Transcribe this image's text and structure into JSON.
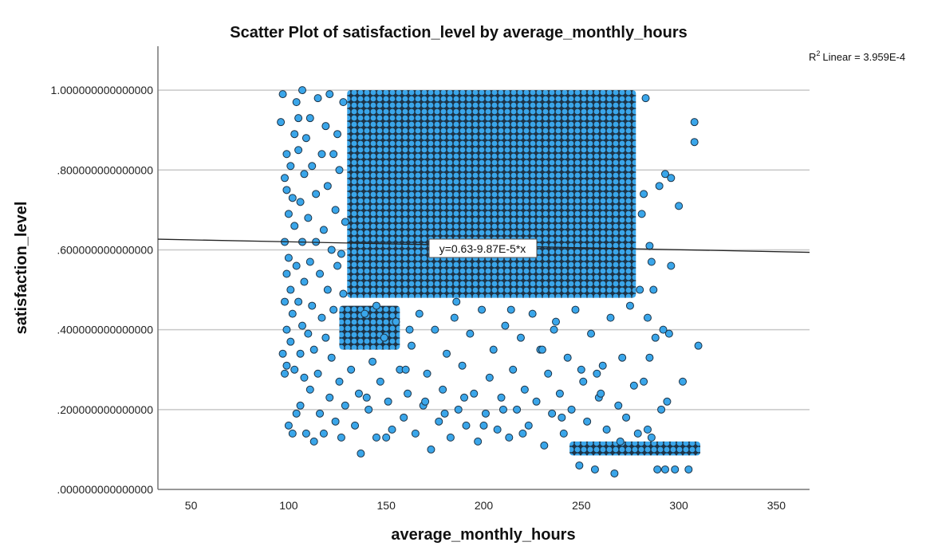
{
  "chart_data": {
    "type": "scatter",
    "title": "Scatter Plot of satisfaction_level by average_monthly_hours",
    "xlabel": "average_monthly_hours",
    "ylabel": "satisfaction_level",
    "xlim": [
      33,
      367
    ],
    "ylim": [
      0,
      1.11
    ],
    "x_ticks": [
      50,
      100,
      150,
      200,
      250,
      300,
      350
    ],
    "x_tick_labels": [
      "50",
      "100",
      "150",
      "200",
      "250",
      "300",
      "350"
    ],
    "y_ticks": [
      0,
      0.2,
      0.4,
      0.6,
      0.8,
      1.0
    ],
    "y_tick_labels": [
      ".000000000000000",
      ".200000000000000",
      ".400000000000000",
      ".600000000000000",
      ".800000000000000",
      "1.000000000000000"
    ],
    "grid": "horizontal",
    "colors": {
      "marker_fill": "#3aa6ea",
      "marker_edge": "#1d3346",
      "fit_line": "#222222"
    },
    "fit": {
      "type": "linear",
      "intercept": 0.63,
      "slope": -9.87e-05,
      "equation_label": "y=0.63-9.87E-5*x",
      "r2_label": "Linear = 3.959E-4",
      "r2_prefix": "R",
      "r2_sup": "2"
    },
    "dense_regions": [
      {
        "x": [
          130,
          278
        ],
        "y": [
          0.48,
          1.0
        ]
      },
      {
        "x": [
          126,
          157
        ],
        "y": [
          0.35,
          0.46
        ]
      },
      {
        "x": [
          244,
          311
        ],
        "y": [
          0.085,
          0.12
        ]
      }
    ],
    "points": [
      [
        96,
        0.92
      ],
      [
        97,
        0.99
      ],
      [
        97,
        0.34
      ],
      [
        98,
        0.78
      ],
      [
        98,
        0.62
      ],
      [
        98,
        0.47
      ],
      [
        98,
        0.29
      ],
      [
        99,
        0.84
      ],
      [
        99,
        0.75
      ],
      [
        99,
        0.54
      ],
      [
        99,
        0.4
      ],
      [
        99,
        0.31
      ],
      [
        100,
        0.16
      ],
      [
        100,
        0.69
      ],
      [
        100,
        0.58
      ],
      [
        101,
        0.81
      ],
      [
        101,
        0.5
      ],
      [
        101,
        0.37
      ],
      [
        102,
        0.14
      ],
      [
        102,
        0.73
      ],
      [
        102,
        0.44
      ],
      [
        103,
        0.89
      ],
      [
        103,
        0.66
      ],
      [
        103,
        0.3
      ],
      [
        104,
        0.97
      ],
      [
        104,
        0.56
      ],
      [
        104,
        0.19
      ],
      [
        105,
        0.93
      ],
      [
        105,
        0.85
      ],
      [
        105,
        0.47
      ],
      [
        106,
        0.72
      ],
      [
        106,
        0.34
      ],
      [
        106,
        0.21
      ],
      [
        107,
        1.0
      ],
      [
        107,
        0.62
      ],
      [
        107,
        0.41
      ],
      [
        108,
        0.79
      ],
      [
        108,
        0.52
      ],
      [
        108,
        0.28
      ],
      [
        109,
        0.88
      ],
      [
        109,
        0.14
      ],
      [
        110,
        0.68
      ],
      [
        110,
        0.39
      ],
      [
        111,
        0.93
      ],
      [
        111,
        0.57
      ],
      [
        111,
        0.25
      ],
      [
        112,
        0.81
      ],
      [
        112,
        0.46
      ],
      [
        113,
        0.12
      ],
      [
        113,
        0.35
      ],
      [
        114,
        0.74
      ],
      [
        114,
        0.62
      ],
      [
        115,
        0.98
      ],
      [
        115,
        0.29
      ],
      [
        116,
        0.54
      ],
      [
        116,
        0.19
      ],
      [
        117,
        0.84
      ],
      [
        117,
        0.43
      ],
      [
        118,
        0.65
      ],
      [
        118,
        0.14
      ],
      [
        119,
        0.91
      ],
      [
        119,
        0.38
      ],
      [
        120,
        0.76
      ],
      [
        120,
        0.5
      ],
      [
        121,
        0.99
      ],
      [
        121,
        0.23
      ],
      [
        122,
        0.6
      ],
      [
        122,
        0.33
      ],
      [
        123,
        0.84
      ],
      [
        123,
        0.45
      ],
      [
        124,
        0.7
      ],
      [
        124,
        0.17
      ],
      [
        125,
        0.89
      ],
      [
        125,
        0.56
      ],
      [
        126,
        0.8
      ],
      [
        126,
        0.27
      ],
      [
        127,
        0.59
      ],
      [
        127,
        0.13
      ],
      [
        128,
        0.97
      ],
      [
        128,
        0.49
      ],
      [
        129,
        0.67
      ],
      [
        129,
        0.21
      ],
      [
        132,
        0.3
      ],
      [
        134,
        0.16
      ],
      [
        136,
        0.24
      ],
      [
        137,
        0.09
      ],
      [
        139,
        0.44
      ],
      [
        141,
        0.2
      ],
      [
        143,
        0.32
      ],
      [
        145,
        0.13
      ],
      [
        147,
        0.27
      ],
      [
        149,
        0.38
      ],
      [
        151,
        0.22
      ],
      [
        153,
        0.15
      ],
      [
        155,
        0.42
      ],
      [
        157,
        0.3
      ],
      [
        159,
        0.18
      ],
      [
        161,
        0.24
      ],
      [
        163,
        0.36
      ],
      [
        165,
        0.14
      ],
      [
        167,
        0.44
      ],
      [
        169,
        0.21
      ],
      [
        171,
        0.29
      ],
      [
        173,
        0.1
      ],
      [
        175,
        0.4
      ],
      [
        177,
        0.17
      ],
      [
        179,
        0.25
      ],
      [
        181,
        0.34
      ],
      [
        183,
        0.13
      ],
      [
        185,
        0.43
      ],
      [
        187,
        0.2
      ],
      [
        189,
        0.31
      ],
      [
        191,
        0.16
      ],
      [
        193,
        0.39
      ],
      [
        195,
        0.24
      ],
      [
        197,
        0.12
      ],
      [
        199,
        0.45
      ],
      [
        201,
        0.19
      ],
      [
        203,
        0.28
      ],
      [
        205,
        0.35
      ],
      [
        207,
        0.15
      ],
      [
        209,
        0.23
      ],
      [
        211,
        0.41
      ],
      [
        213,
        0.13
      ],
      [
        215,
        0.3
      ],
      [
        217,
        0.2
      ],
      [
        219,
        0.38
      ],
      [
        221,
        0.25
      ],
      [
        223,
        0.16
      ],
      [
        225,
        0.44
      ],
      [
        227,
        0.22
      ],
      [
        229,
        0.35
      ],
      [
        231,
        0.11
      ],
      [
        233,
        0.29
      ],
      [
        235,
        0.19
      ],
      [
        237,
        0.42
      ],
      [
        239,
        0.24
      ],
      [
        241,
        0.14
      ],
      [
        243,
        0.33
      ],
      [
        245,
        0.2
      ],
      [
        247,
        0.45
      ],
      [
        249,
        0.06
      ],
      [
        251,
        0.27
      ],
      [
        253,
        0.17
      ],
      [
        255,
        0.39
      ],
      [
        257,
        0.05
      ],
      [
        259,
        0.23
      ],
      [
        261,
        0.31
      ],
      [
        263,
        0.15
      ],
      [
        265,
        0.43
      ],
      [
        267,
        0.04
      ],
      [
        269,
        0.21
      ],
      [
        271,
        0.33
      ],
      [
        273,
        0.18
      ],
      [
        275,
        0.46
      ],
      [
        277,
        0.26
      ],
      [
        279,
        0.14
      ],
      [
        140,
        0.23
      ],
      [
        150,
        0.13
      ],
      [
        160,
        0.3
      ],
      [
        170,
        0.22
      ],
      [
        180,
        0.19
      ],
      [
        190,
        0.23
      ],
      [
        200,
        0.16
      ],
      [
        210,
        0.2
      ],
      [
        220,
        0.14
      ],
      [
        230,
        0.35
      ],
      [
        240,
        0.18
      ],
      [
        250,
        0.3
      ],
      [
        260,
        0.24
      ],
      [
        270,
        0.12
      ],
      [
        145,
        0.46
      ],
      [
        162,
        0.4
      ],
      [
        186,
        0.47
      ],
      [
        214,
        0.45
      ],
      [
        236,
        0.4
      ],
      [
        258,
        0.29
      ],
      [
        280,
        0.5
      ],
      [
        281,
        0.69
      ],
      [
        282,
        0.74
      ],
      [
        283,
        0.98
      ],
      [
        284,
        0.43
      ],
      [
        285,
        0.33
      ],
      [
        285,
        0.61
      ],
      [
        286,
        0.13
      ],
      [
        287,
        0.5
      ],
      [
        288,
        0.38
      ],
      [
        289,
        0.05
      ],
      [
        290,
        0.76
      ],
      [
        291,
        0.2
      ],
      [
        292,
        0.4
      ],
      [
        293,
        0.79
      ],
      [
        293,
        0.05
      ],
      [
        294,
        0.22
      ],
      [
        295,
        0.39
      ],
      [
        296,
        0.78
      ],
      [
        296,
        0.56
      ],
      [
        298,
        0.05
      ],
      [
        300,
        0.71
      ],
      [
        302,
        0.27
      ],
      [
        305,
        0.05
      ],
      [
        308,
        0.92
      ],
      [
        308,
        0.87
      ],
      [
        310,
        0.36
      ],
      [
        282,
        0.27
      ],
      [
        284,
        0.15
      ],
      [
        286,
        0.57
      ]
    ]
  }
}
